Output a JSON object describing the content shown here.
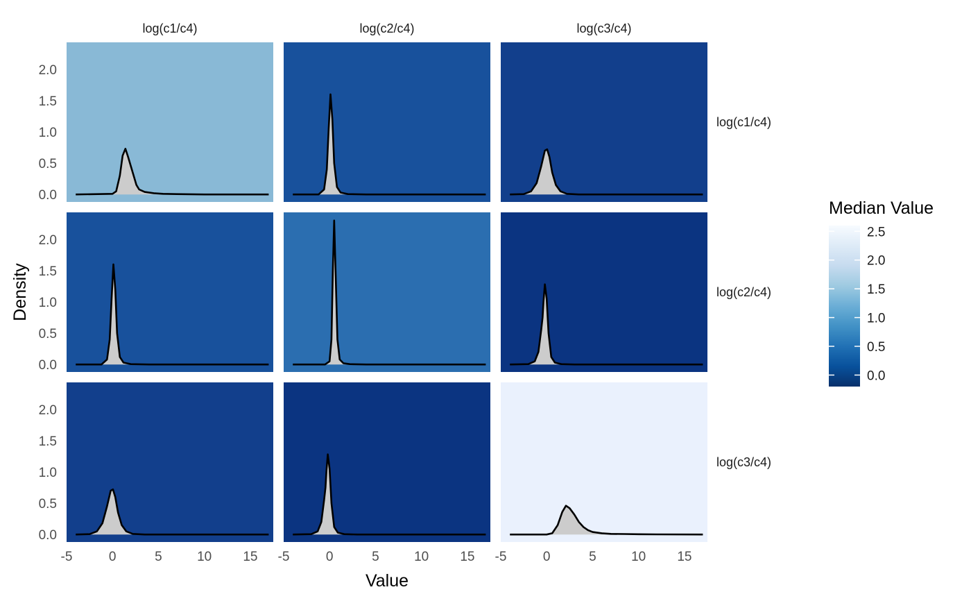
{
  "chart_data": {
    "type": "area",
    "facet_layout": "grid-3x3",
    "xlabel": "Value",
    "ylabel": "Density",
    "xlim": [
      -5.0,
      17.5
    ],
    "ylim": [
      -0.12,
      2.43
    ],
    "x_ticks": [
      -5,
      0,
      5,
      10,
      15
    ],
    "x_tick_labels": [
      "-5",
      "0",
      "5",
      "10",
      "15"
    ],
    "y_ticks": [
      0,
      0.5,
      1.0,
      1.5,
      2.0
    ],
    "y_tick_labels": [
      "0.0",
      "0.5",
      "1.0",
      "1.5",
      "2.0"
    ],
    "col_labels": [
      "log(c1/c4)",
      "log(c2/c4)",
      "log(c3/c4)"
    ],
    "row_labels": [
      "log(c1/c4)",
      "log(c2/c4)",
      "log(c3/c4)"
    ],
    "fill_color": "#cccccc",
    "line_color": "#000000",
    "density_x_range": [
      -4,
      17
    ],
    "legend": {
      "title": "Median Value",
      "position": "right",
      "min": -0.2,
      "max": 2.6,
      "ticks": [
        -0.0,
        0.5,
        1.0,
        1.5,
        2.0,
        2.5
      ],
      "tick_labels": [
        "0.0",
        "0.5",
        "1.0",
        "1.5",
        "2.0",
        "2.5"
      ],
      "colors": [
        "#08306b",
        "#08519c",
        "#2171b5",
        "#4292c6",
        "#6baed6",
        "#9ecae1",
        "#c6dbef",
        "#deebf7",
        "#f7fbff"
      ]
    },
    "panels": [
      {
        "row": 0,
        "col": 0,
        "median": 1.5,
        "bg": "#89b9d6",
        "density": [
          [
            -4,
            0
          ],
          [
            0,
            0.01
          ],
          [
            0.4,
            0.05
          ],
          [
            0.8,
            0.3
          ],
          [
            1.1,
            0.62
          ],
          [
            1.4,
            0.73
          ],
          [
            1.7,
            0.6
          ],
          [
            2.0,
            0.45
          ],
          [
            2.3,
            0.3
          ],
          [
            2.6,
            0.15
          ],
          [
            2.9,
            0.08
          ],
          [
            3.5,
            0.04
          ],
          [
            4.5,
            0.02
          ],
          [
            5.5,
            0.01
          ],
          [
            7,
            0.005
          ],
          [
            10,
            0
          ],
          [
            17,
            0
          ]
        ]
      },
      {
        "row": 0,
        "col": 1,
        "median": 0.1,
        "bg": "#18519c",
        "density": [
          [
            -4,
            0
          ],
          [
            -1.2,
            0
          ],
          [
            -0.6,
            0.08
          ],
          [
            -0.3,
            0.4
          ],
          [
            -0.1,
            1.05
          ],
          [
            0.1,
            1.6
          ],
          [
            0.3,
            1.2
          ],
          [
            0.5,
            0.5
          ],
          [
            0.8,
            0.12
          ],
          [
            1.2,
            0.03
          ],
          [
            2,
            0.005
          ],
          [
            4,
            0
          ],
          [
            17,
            0
          ]
        ]
      },
      {
        "row": 0,
        "col": 2,
        "median": -0.05,
        "bg": "#123f8c",
        "density": [
          [
            -4,
            0
          ],
          [
            -2.5,
            0.005
          ],
          [
            -1.7,
            0.05
          ],
          [
            -1.1,
            0.18
          ],
          [
            -0.6,
            0.45
          ],
          [
            -0.2,
            0.7
          ],
          [
            0.05,
            0.72
          ],
          [
            0.3,
            0.6
          ],
          [
            0.6,
            0.35
          ],
          [
            1,
            0.15
          ],
          [
            1.5,
            0.05
          ],
          [
            2.2,
            0.01
          ],
          [
            3.5,
            0
          ],
          [
            17,
            0
          ]
        ]
      },
      {
        "row": 1,
        "col": 0,
        "median": 0.1,
        "bg": "#18519c",
        "density": [
          [
            -4,
            0
          ],
          [
            -1.2,
            0
          ],
          [
            -0.6,
            0.08
          ],
          [
            -0.3,
            0.4
          ],
          [
            -0.1,
            1.05
          ],
          [
            0.1,
            1.6
          ],
          [
            0.3,
            1.2
          ],
          [
            0.5,
            0.5
          ],
          [
            0.8,
            0.12
          ],
          [
            1.2,
            0.03
          ],
          [
            2,
            0.005
          ],
          [
            4,
            0
          ],
          [
            17,
            0
          ]
        ]
      },
      {
        "row": 1,
        "col": 1,
        "median": 0.75,
        "bg": "#2b6eb0",
        "density": [
          [
            -4,
            0
          ],
          [
            -0.5,
            0
          ],
          [
            0,
            0.05
          ],
          [
            0.2,
            0.4
          ],
          [
            0.35,
            1.5
          ],
          [
            0.5,
            2.3
          ],
          [
            0.65,
            1.5
          ],
          [
            0.85,
            0.4
          ],
          [
            1.1,
            0.08
          ],
          [
            1.5,
            0.02
          ],
          [
            2.2,
            0.005
          ],
          [
            4,
            0
          ],
          [
            17,
            0
          ]
        ]
      },
      {
        "row": 1,
        "col": 2,
        "median": -0.15,
        "bg": "#0b3481",
        "density": [
          [
            -4,
            0
          ],
          [
            -2,
            0.005
          ],
          [
            -1.3,
            0.05
          ],
          [
            -0.9,
            0.2
          ],
          [
            -0.6,
            0.55
          ],
          [
            -0.45,
            0.75
          ],
          [
            -0.35,
            1.0
          ],
          [
            -0.2,
            1.28
          ],
          [
            0,
            1.05
          ],
          [
            0.2,
            0.5
          ],
          [
            0.5,
            0.12
          ],
          [
            0.9,
            0.03
          ],
          [
            1.6,
            0.005
          ],
          [
            3,
            0
          ],
          [
            17,
            0
          ]
        ]
      },
      {
        "row": 2,
        "col": 0,
        "median": -0.05,
        "bg": "#123f8c",
        "density": [
          [
            -4,
            0
          ],
          [
            -2.5,
            0.005
          ],
          [
            -1.7,
            0.05
          ],
          [
            -1.1,
            0.18
          ],
          [
            -0.6,
            0.45
          ],
          [
            -0.2,
            0.7
          ],
          [
            0.05,
            0.72
          ],
          [
            0.3,
            0.6
          ],
          [
            0.6,
            0.35
          ],
          [
            1,
            0.15
          ],
          [
            1.5,
            0.05
          ],
          [
            2.2,
            0.01
          ],
          [
            3.5,
            0
          ],
          [
            17,
            0
          ]
        ]
      },
      {
        "row": 2,
        "col": 1,
        "median": -0.15,
        "bg": "#0b3481",
        "density": [
          [
            -4,
            0
          ],
          [
            -2,
            0.005
          ],
          [
            -1.3,
            0.05
          ],
          [
            -0.9,
            0.2
          ],
          [
            -0.6,
            0.55
          ],
          [
            -0.45,
            0.75
          ],
          [
            -0.35,
            1.0
          ],
          [
            -0.2,
            1.28
          ],
          [
            0,
            1.05
          ],
          [
            0.2,
            0.5
          ],
          [
            0.5,
            0.12
          ],
          [
            0.9,
            0.03
          ],
          [
            1.6,
            0.005
          ],
          [
            3,
            0
          ],
          [
            17,
            0
          ]
        ]
      },
      {
        "row": 2,
        "col": 2,
        "median": 2.55,
        "bg": "#eaf1fd",
        "density": [
          [
            -4,
            0
          ],
          [
            0,
            0
          ],
          [
            0.6,
            0.02
          ],
          [
            1.2,
            0.15
          ],
          [
            1.7,
            0.36
          ],
          [
            2.1,
            0.46
          ],
          [
            2.5,
            0.42
          ],
          [
            3,
            0.32
          ],
          [
            3.5,
            0.2
          ],
          [
            4,
            0.12
          ],
          [
            4.5,
            0.07
          ],
          [
            5,
            0.04
          ],
          [
            6,
            0.02
          ],
          [
            7,
            0.01
          ],
          [
            8.5,
            0.008
          ],
          [
            10,
            0.004
          ],
          [
            12,
            0.002
          ],
          [
            17,
            0
          ]
        ]
      }
    ]
  }
}
